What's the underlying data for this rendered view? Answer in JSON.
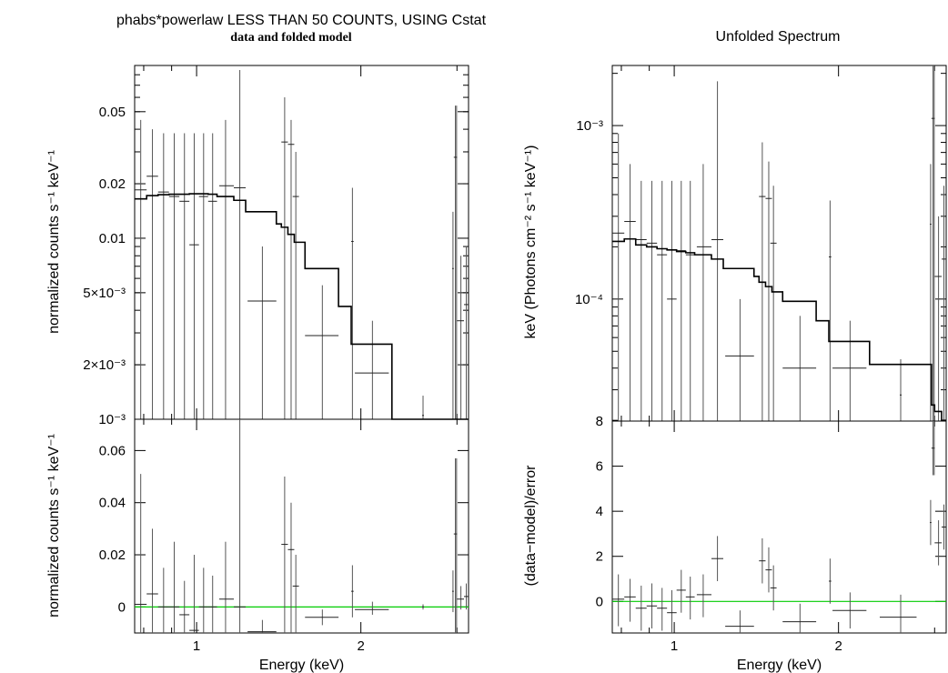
{
  "left_title": "phabs*powerlaw LESS THAN 50 COUNTS, USING Cstat",
  "left_subtitle": "data and folded model",
  "right_title": "Unfolded Spectrum",
  "chart_data": [
    {
      "type": "scatter",
      "panel": "left-top",
      "ylabel": "normalized counts s⁻¹ keV⁻¹",
      "xscale": "log",
      "yscale": "log",
      "xlim": [
        0.77,
        3.15
      ],
      "ylim": [
        0.001,
        0.09
      ],
      "yticks": [
        {
          "v": 0.001,
          "label": "10⁻³"
        },
        {
          "v": 0.002,
          "label": "2×10⁻³"
        },
        {
          "v": 0.005,
          "label": "5×10⁻³"
        },
        {
          "v": 0.01,
          "label": "0.01"
        },
        {
          "v": 0.02,
          "label": "0.02"
        },
        {
          "v": 0.05,
          "label": "0.05"
        }
      ],
      "data": [
        {
          "x": 0.79,
          "xlo": 0.77,
          "xhi": 0.81,
          "y": 0.0185,
          "ylo": 0.001,
          "yhi": 0.045
        },
        {
          "x": 0.83,
          "xlo": 0.81,
          "xhi": 0.85,
          "y": 0.022,
          "ylo": 0.001,
          "yhi": 0.04
        },
        {
          "x": 0.87,
          "xlo": 0.85,
          "xhi": 0.89,
          "y": 0.018,
          "ylo": 0.001,
          "yhi": 0.038
        },
        {
          "x": 0.91,
          "xlo": 0.89,
          "xhi": 0.93,
          "y": 0.017,
          "ylo": 0.001,
          "yhi": 0.038
        },
        {
          "x": 0.95,
          "xlo": 0.93,
          "xhi": 0.97,
          "y": 0.016,
          "ylo": 0.001,
          "yhi": 0.038
        },
        {
          "x": 0.99,
          "xlo": 0.97,
          "xhi": 1.01,
          "y": 0.0092,
          "ylo": 0.001,
          "yhi": 0.038
        },
        {
          "x": 1.03,
          "xlo": 1.01,
          "xhi": 1.05,
          "y": 0.017,
          "ylo": 0.001,
          "yhi": 0.038
        },
        {
          "x": 1.07,
          "xlo": 1.05,
          "xhi": 1.09,
          "y": 0.016,
          "ylo": 0.001,
          "yhi": 0.038
        },
        {
          "x": 1.13,
          "xlo": 1.1,
          "xhi": 1.17,
          "y": 0.0195,
          "ylo": 0.001,
          "yhi": 0.045
        },
        {
          "x": 1.2,
          "xlo": 1.17,
          "xhi": 1.23,
          "y": 0.019,
          "ylo": 0.001,
          "yhi": 0.085
        },
        {
          "x": 1.32,
          "xlo": 1.24,
          "xhi": 1.4,
          "y": 0.0045,
          "ylo": 0.001,
          "yhi": 0.009
        },
        {
          "x": 1.45,
          "xlo": 1.43,
          "xhi": 1.47,
          "y": 0.034,
          "ylo": 0.001,
          "yhi": 0.06
        },
        {
          "x": 1.49,
          "xlo": 1.47,
          "xhi": 1.51,
          "y": 0.033,
          "ylo": 0.001,
          "yhi": 0.045
        },
        {
          "x": 1.52,
          "xlo": 1.5,
          "xhi": 1.54,
          "y": 0.017,
          "ylo": 0.001,
          "yhi": 0.03
        },
        {
          "x": 1.7,
          "xlo": 1.58,
          "xhi": 1.82,
          "y": 0.0029,
          "ylo": 0.001,
          "yhi": 0.0055
        },
        {
          "x": 1.93,
          "xlo": 1.92,
          "xhi": 1.94,
          "y": 0.0096,
          "ylo": 0.001,
          "yhi": 0.019
        },
        {
          "x": 2.1,
          "xlo": 1.95,
          "xhi": 2.25,
          "y": 0.0018,
          "ylo": 0.001,
          "yhi": 0.0035
        },
        {
          "x": 2.6,
          "xlo": 2.59,
          "xhi": 2.61,
          "y": 0.00105,
          "ylo": 0.001,
          "yhi": 0.00135
        },
        {
          "x": 2.95,
          "xlo": 2.94,
          "xhi": 2.96,
          "y": 0.0068,
          "ylo": 0.001,
          "yhi": 0.014
        },
        {
          "x": 2.98,
          "xlo": 2.96,
          "xhi": 3.0,
          "y": 0.028,
          "ylo": 0.001,
          "yhi": 0.054
        },
        {
          "x": 2.995,
          "xlo": 2.99,
          "xhi": 3.0,
          "y": 0.028,
          "ylo": 0.001,
          "yhi": 0.054
        },
        {
          "x": 3.05,
          "xlo": 3.0,
          "xhi": 3.09,
          "y": 0.0035,
          "ylo": 0.001,
          "yhi": 0.008
        },
        {
          "x": 3.12,
          "xlo": 3.09,
          "xhi": 3.15,
          "y": 0.0043,
          "ylo": 0.001,
          "yhi": 0.009
        }
      ],
      "model": [
        [
          0.77,
          0.0165
        ],
        [
          0.81,
          0.0172
        ],
        [
          0.85,
          0.0174
        ],
        [
          0.89,
          0.0175
        ],
        [
          0.93,
          0.0175
        ],
        [
          0.97,
          0.0176
        ],
        [
          1.01,
          0.0176
        ],
        [
          1.05,
          0.0175
        ],
        [
          1.09,
          0.017
        ],
        [
          1.17,
          0.0162
        ],
        [
          1.23,
          0.014
        ],
        [
          1.4,
          0.012
        ],
        [
          1.43,
          0.0115
        ],
        [
          1.47,
          0.0105
        ],
        [
          1.51,
          0.0095
        ],
        [
          1.58,
          0.0068
        ],
        [
          1.82,
          0.0042
        ],
        [
          1.92,
          0.0026
        ],
        [
          2.28,
          0.0026
        ],
        [
          2.28,
          0.001
        ]
      ]
    },
    {
      "type": "scatter",
      "panel": "left-bottom",
      "xlabel": "Energy (keV)",
      "ylabel": "normalized counts s⁻¹ keV⁻¹",
      "xscale": "log",
      "xlim": [
        0.77,
        3.15
      ],
      "ylim": [
        -0.01,
        0.072
      ],
      "xticks": [
        {
          "v": 1,
          "label": "1"
        },
        {
          "v": 2,
          "label": "2"
        }
      ],
      "yticks": [
        {
          "v": 0,
          "label": "0"
        },
        {
          "v": 0.02,
          "label": "0.02"
        },
        {
          "v": 0.04,
          "label": "0.04"
        },
        {
          "v": 0.06,
          "label": "0.06"
        }
      ],
      "zero_line_color": "#00cc00",
      "data": [
        {
          "x": 0.79,
          "xlo": 0.77,
          "xhi": 0.81,
          "y": 0.001,
          "ylo": -0.01,
          "yhi": 0.051
        },
        {
          "x": 0.83,
          "xlo": 0.81,
          "xhi": 0.85,
          "y": 0.005,
          "ylo": -0.01,
          "yhi": 0.03
        },
        {
          "x": 0.87,
          "xlo": 0.85,
          "xhi": 0.89,
          "y": 0.0,
          "ylo": -0.01,
          "yhi": 0.015
        },
        {
          "x": 0.91,
          "xlo": 0.89,
          "xhi": 0.93,
          "y": 0.0,
          "ylo": -0.01,
          "yhi": 0.025
        },
        {
          "x": 0.95,
          "xlo": 0.93,
          "xhi": 0.97,
          "y": -0.003,
          "ylo": -0.01,
          "yhi": 0.01
        },
        {
          "x": 0.99,
          "xlo": 0.97,
          "xhi": 1.01,
          "y": -0.009,
          "ylo": -0.01,
          "yhi": 0.02
        },
        {
          "x": 1.03,
          "xlo": 1.01,
          "xhi": 1.05,
          "y": 0.0,
          "ylo": -0.01,
          "yhi": 0.015
        },
        {
          "x": 1.07,
          "xlo": 1.05,
          "xhi": 1.09,
          "y": 0.0,
          "ylo": -0.01,
          "yhi": 0.012
        },
        {
          "x": 1.13,
          "xlo": 1.1,
          "xhi": 1.17,
          "y": 0.003,
          "ylo": -0.01,
          "yhi": 0.025
        },
        {
          "x": 1.2,
          "xlo": 1.17,
          "xhi": 1.23,
          "y": 0.0,
          "ylo": -0.01,
          "yhi": 0.072
        },
        {
          "x": 1.32,
          "xlo": 1.24,
          "xhi": 1.4,
          "y": -0.0095,
          "ylo": -0.01,
          "yhi": -0.005
        },
        {
          "x": 1.45,
          "xlo": 1.43,
          "xhi": 1.47,
          "y": 0.024,
          "ylo": -0.01,
          "yhi": 0.05
        },
        {
          "x": 1.49,
          "xlo": 1.47,
          "xhi": 1.51,
          "y": 0.022,
          "ylo": -0.01,
          "yhi": 0.04
        },
        {
          "x": 1.52,
          "xlo": 1.5,
          "xhi": 1.54,
          "y": 0.008,
          "ylo": -0.01,
          "yhi": 0.02
        },
        {
          "x": 1.7,
          "xlo": 1.58,
          "xhi": 1.82,
          "y": -0.004,
          "ylo": -0.007,
          "yhi": -0.001
        },
        {
          "x": 1.93,
          "xlo": 1.92,
          "xhi": 1.94,
          "y": 0.006,
          "ylo": -0.004,
          "yhi": 0.016
        },
        {
          "x": 2.1,
          "xlo": 1.95,
          "xhi": 2.25,
          "y": -0.001,
          "ylo": -0.003,
          "yhi": 0.002
        },
        {
          "x": 2.6,
          "xlo": 2.59,
          "xhi": 2.61,
          "y": 0.0,
          "ylo": -0.001,
          "yhi": 0.001
        },
        {
          "x": 2.95,
          "xlo": 2.94,
          "xhi": 2.96,
          "y": 0.006,
          "ylo": -0.002,
          "yhi": 0.014
        },
        {
          "x": 2.98,
          "xlo": 2.96,
          "xhi": 3.0,
          "y": 0.028,
          "ylo": -0.01,
          "yhi": 0.057
        },
        {
          "x": 2.995,
          "xlo": 2.99,
          "xhi": 3.0,
          "y": 0.028,
          "ylo": -0.01,
          "yhi": 0.057
        },
        {
          "x": 3.05,
          "xlo": 3.0,
          "xhi": 3.09,
          "y": 0.003,
          "ylo": -0.001,
          "yhi": 0.008
        },
        {
          "x": 3.12,
          "xlo": 3.09,
          "xhi": 3.15,
          "y": 0.004,
          "ylo": -0.001,
          "yhi": 0.009
        }
      ]
    },
    {
      "type": "scatter",
      "panel": "right-top",
      "ylabel": "keV (Photons cm⁻² s⁻¹ keV⁻¹)",
      "xscale": "log",
      "yscale": "log",
      "xlim": [
        0.77,
        3.15
      ],
      "ylim": [
        1.98e-05,
        0.00222
      ],
      "yticks": [
        {
          "v": 0.0001,
          "label": "10⁻⁴"
        },
        {
          "v": 0.001,
          "label": "10⁻³"
        }
      ],
      "data": [
        {
          "x": 0.79,
          "xlo": 0.77,
          "xhi": 0.81,
          "y": 0.00024,
          "ylo": 1.98e-05,
          "yhi": 0.0009
        },
        {
          "x": 0.83,
          "xlo": 0.81,
          "xhi": 0.85,
          "y": 0.00028,
          "ylo": 1.98e-05,
          "yhi": 0.0006
        },
        {
          "x": 0.87,
          "xlo": 0.85,
          "xhi": 0.89,
          "y": 0.00022,
          "ylo": 1.98e-05,
          "yhi": 0.00048
        },
        {
          "x": 0.91,
          "xlo": 0.89,
          "xhi": 0.93,
          "y": 0.00021,
          "ylo": 1.98e-05,
          "yhi": 0.00048
        },
        {
          "x": 0.95,
          "xlo": 0.93,
          "xhi": 0.97,
          "y": 0.00018,
          "ylo": 1.98e-05,
          "yhi": 0.00048
        },
        {
          "x": 0.99,
          "xlo": 0.97,
          "xhi": 1.01,
          "y": 0.0001,
          "ylo": 1.98e-05,
          "yhi": 0.00048
        },
        {
          "x": 1.03,
          "xlo": 1.01,
          "xhi": 1.05,
          "y": 0.00019,
          "ylo": 1.98e-05,
          "yhi": 0.00048
        },
        {
          "x": 1.07,
          "xlo": 1.05,
          "xhi": 1.09,
          "y": 0.00018,
          "ylo": 1.98e-05,
          "yhi": 0.00048
        },
        {
          "x": 1.13,
          "xlo": 1.1,
          "xhi": 1.17,
          "y": 0.0002,
          "ylo": 1.98e-05,
          "yhi": 0.0006
        },
        {
          "x": 1.2,
          "xlo": 1.17,
          "xhi": 1.23,
          "y": 0.00022,
          "ylo": 1.98e-05,
          "yhi": 0.0018
        },
        {
          "x": 1.32,
          "xlo": 1.24,
          "xhi": 1.4,
          "y": 4.7e-05,
          "ylo": 1.98e-05,
          "yhi": 0.0001
        },
        {
          "x": 1.45,
          "xlo": 1.43,
          "xhi": 1.47,
          "y": 0.00039,
          "ylo": 1.98e-05,
          "yhi": 0.0008
        },
        {
          "x": 1.49,
          "xlo": 1.47,
          "xhi": 1.51,
          "y": 0.00038,
          "ylo": 1.98e-05,
          "yhi": 0.00062
        },
        {
          "x": 1.52,
          "xlo": 1.5,
          "xhi": 1.54,
          "y": 0.00021,
          "ylo": 1.98e-05,
          "yhi": 0.00045
        },
        {
          "x": 1.7,
          "xlo": 1.58,
          "xhi": 1.82,
          "y": 4e-05,
          "ylo": 1.98e-05,
          "yhi": 8e-05
        },
        {
          "x": 1.93,
          "xlo": 1.92,
          "xhi": 1.94,
          "y": 0.000175,
          "ylo": 1.98e-05,
          "yhi": 0.00037
        },
        {
          "x": 2.1,
          "xlo": 1.95,
          "xhi": 2.25,
          "y": 4e-05,
          "ylo": 1.98e-05,
          "yhi": 7.5e-05
        },
        {
          "x": 2.6,
          "xlo": 2.59,
          "xhi": 2.61,
          "y": 2.8e-05,
          "ylo": 1.98e-05,
          "yhi": 4.5e-05
        },
        {
          "x": 2.95,
          "xlo": 2.94,
          "xhi": 2.96,
          "y": 0.00027,
          "ylo": 1.98e-05,
          "yhi": 0.0006
        },
        {
          "x": 2.98,
          "xlo": 2.96,
          "xhi": 3.0,
          "y": 0.0011,
          "ylo": 1.98e-05,
          "yhi": 0.00222
        },
        {
          "x": 2.995,
          "xlo": 2.99,
          "xhi": 3.0,
          "y": 0.0011,
          "ylo": 1.98e-05,
          "yhi": 0.00222
        },
        {
          "x": 3.05,
          "xlo": 3.0,
          "xhi": 3.09,
          "y": 0.000135,
          "ylo": 1.98e-05,
          "yhi": 0.0003
        },
        {
          "x": 3.12,
          "xlo": 3.09,
          "xhi": 3.15,
          "y": 0.00017,
          "ylo": 1.98e-05,
          "yhi": 0.00045
        }
      ],
      "model": [
        [
          0.77,
          0.000215
        ],
        [
          0.81,
          0.000222
        ],
        [
          0.85,
          0.000205
        ],
        [
          0.89,
          0.0002
        ],
        [
          0.93,
          0.000195
        ],
        [
          0.97,
          0.000192
        ],
        [
          1.01,
          0.000188
        ],
        [
          1.05,
          0.000185
        ],
        [
          1.09,
          0.00018
        ],
        [
          1.17,
          0.00017
        ],
        [
          1.23,
          0.00015
        ],
        [
          1.4,
          0.000135
        ],
        [
          1.43,
          0.000125
        ],
        [
          1.47,
          0.000118
        ],
        [
          1.51,
          0.00011
        ],
        [
          1.58,
          9.7e-05
        ],
        [
          1.82,
          7.5e-05
        ],
        [
          1.92,
          5.7e-05
        ],
        [
          2.28,
          4.2e-05
        ],
        [
          2.96,
          2.45e-05
        ],
        [
          3.0,
          2.25e-05
        ],
        [
          3.09,
          2e-05
        ],
        [
          3.15,
          2e-05
        ]
      ]
    },
    {
      "type": "scatter",
      "panel": "right-bottom",
      "xlabel": "Energy (keV)",
      "ylabel": "(data−model)/error",
      "xscale": "log",
      "xlim": [
        0.77,
        3.15
      ],
      "ylim": [
        -1.4,
        8
      ],
      "xticks": [
        {
          "v": 1,
          "label": "1"
        },
        {
          "v": 2,
          "label": "2"
        }
      ],
      "yticks": [
        {
          "v": 0,
          "label": "0"
        },
        {
          "v": 2,
          "label": "2"
        },
        {
          "v": 4,
          "label": "4"
        },
        {
          "v": 6,
          "label": "6"
        },
        {
          "v": 8,
          "label": "8"
        }
      ],
      "zero_line_color": "#00cc00",
      "data": [
        {
          "x": 0.79,
          "xlo": 0.77,
          "xhi": 0.81,
          "y": 0.1,
          "ylo": -1.1,
          "yhi": 1.2
        },
        {
          "x": 0.83,
          "xlo": 0.81,
          "xhi": 0.85,
          "y": 0.2,
          "ylo": -0.9,
          "yhi": 1.0
        },
        {
          "x": 0.87,
          "xlo": 0.85,
          "xhi": 0.89,
          "y": -0.3,
          "ylo": -1.3,
          "yhi": 0.7
        },
        {
          "x": 0.91,
          "xlo": 0.89,
          "xhi": 0.93,
          "y": -0.2,
          "ylo": -1.2,
          "yhi": 0.8
        },
        {
          "x": 0.95,
          "xlo": 0.93,
          "xhi": 0.97,
          "y": -0.3,
          "ylo": -1.3,
          "yhi": 0.6
        },
        {
          "x": 0.99,
          "xlo": 0.97,
          "xhi": 1.01,
          "y": -0.5,
          "ylo": -1.4,
          "yhi": 0.5
        },
        {
          "x": 1.03,
          "xlo": 1.01,
          "xhi": 1.05,
          "y": 0.5,
          "ylo": -0.5,
          "yhi": 1.4
        },
        {
          "x": 1.07,
          "xlo": 1.05,
          "xhi": 1.09,
          "y": 0.2,
          "ylo": -0.8,
          "yhi": 1.1
        },
        {
          "x": 1.13,
          "xlo": 1.1,
          "xhi": 1.17,
          "y": 0.3,
          "ylo": -0.7,
          "yhi": 1.2
        },
        {
          "x": 1.2,
          "xlo": 1.17,
          "xhi": 1.23,
          "y": 1.9,
          "ylo": 0.9,
          "yhi": 2.9
        },
        {
          "x": 1.32,
          "xlo": 1.24,
          "xhi": 1.4,
          "y": -1.1,
          "ylo": -1.4,
          "yhi": -0.4
        },
        {
          "x": 1.45,
          "xlo": 1.43,
          "xhi": 1.47,
          "y": 1.8,
          "ylo": 0.8,
          "yhi": 2.8
        },
        {
          "x": 1.49,
          "xlo": 1.47,
          "xhi": 1.51,
          "y": 1.4,
          "ylo": 0.4,
          "yhi": 2.4
        },
        {
          "x": 1.52,
          "xlo": 1.5,
          "xhi": 1.54,
          "y": 0.6,
          "ylo": -0.4,
          "yhi": 1.6
        },
        {
          "x": 1.7,
          "xlo": 1.58,
          "xhi": 1.82,
          "y": -0.9,
          "ylo": -1.4,
          "yhi": -0.1
        },
        {
          "x": 1.93,
          "xlo": 1.92,
          "xhi": 1.94,
          "y": 0.9,
          "ylo": -0.1,
          "yhi": 1.9
        },
        {
          "x": 2.1,
          "xlo": 1.95,
          "xhi": 2.25,
          "y": -0.4,
          "ylo": -1.2,
          "yhi": 0.4
        },
        {
          "x": 2.6,
          "xlo": 2.38,
          "xhi": 2.78,
          "y": -0.7,
          "ylo": -1.4,
          "yhi": 0.3
        },
        {
          "x": 2.95,
          "xlo": 2.94,
          "xhi": 2.96,
          "y": 3.5,
          "ylo": 2.5,
          "yhi": 4.5
        },
        {
          "x": 2.98,
          "xlo": 2.96,
          "xhi": 3.0,
          "y": 6.8,
          "ylo": 5.6,
          "yhi": 8
        },
        {
          "x": 2.995,
          "xlo": 2.99,
          "xhi": 3.0,
          "y": 6.8,
          "ylo": 5.6,
          "yhi": 8
        },
        {
          "x": 3.05,
          "xlo": 3.0,
          "xhi": 3.09,
          "y": 2.6,
          "ylo": 1.6,
          "yhi": 3.6
        },
        {
          "x": 3.12,
          "xlo": 3.09,
          "xhi": 3.15,
          "y": 3.3,
          "ylo": 2.3,
          "yhi": 4.3
        }
      ]
    }
  ]
}
